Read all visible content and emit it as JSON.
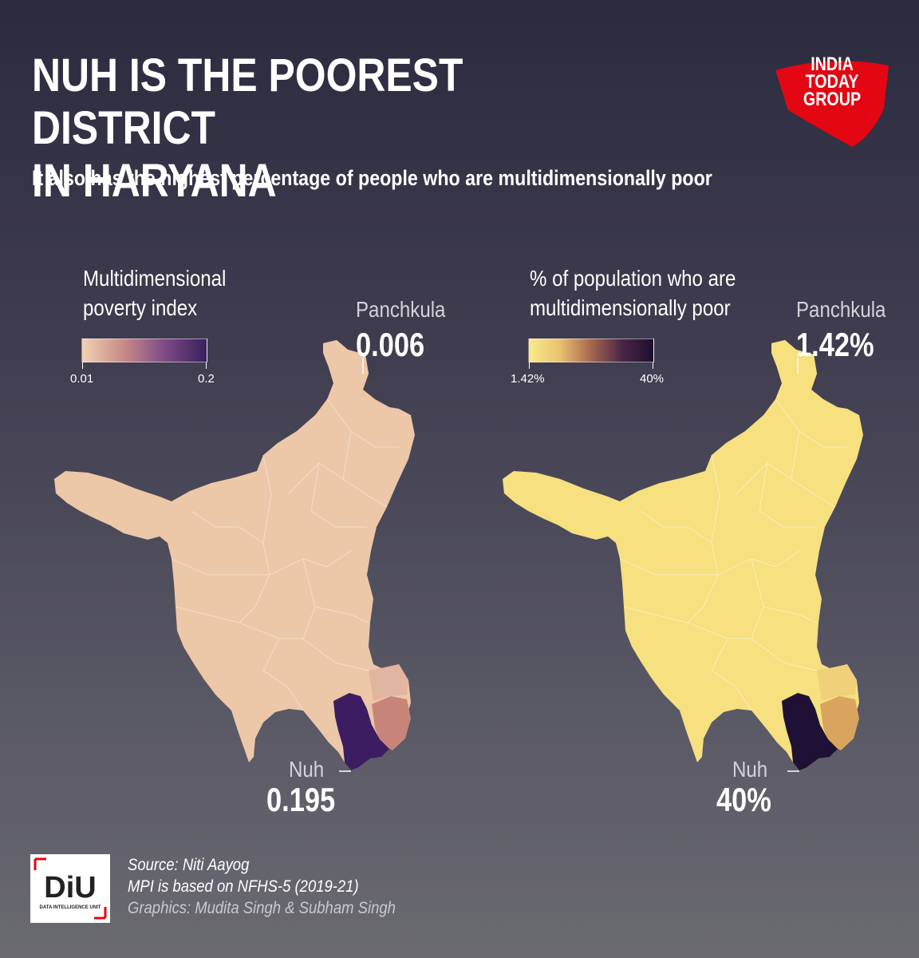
{
  "header": {
    "title_line1": "NUH IS THE POOREST DISTRICT",
    "title_line2": "IN HARYANA",
    "subtitle": "It also has the highest percentage of people who are multidimensionally poor"
  },
  "brand": {
    "line1": "INDIA",
    "line2": "TODAY",
    "line3": "GROUP",
    "color": "#e30613"
  },
  "maps": [
    {
      "legend_title_line1": "Multidimensional",
      "legend_title_line2": "poverty index",
      "legend_min": "0.01",
      "legend_max": "0.2",
      "gradient": [
        "#f0d2b2",
        "#c88a86",
        "#7d4a86",
        "#3a1f5e"
      ],
      "top_callout_name": "Panchkula",
      "top_callout_value": "0.006",
      "bottom_callout_name": "Nuh",
      "bottom_callout_value": "0.195",
      "base_fill": "#ecc7a8",
      "highlight_fill": "#3c1d62",
      "neighbor_fill": "#c7857a",
      "secondary_fill": "#e2b5a0"
    },
    {
      "legend_title_line1": "% of population who are",
      "legend_title_line2": "multidimensionally poor",
      "legend_min": "1.42%",
      "legend_max": "40%",
      "gradient": [
        "#fbeb8a",
        "#e9c170",
        "#a7664f",
        "#4a2548",
        "#1d0f2e"
      ],
      "top_callout_name": "Panchkula",
      "top_callout_value": "1.42%",
      "bottom_callout_name": "Nuh",
      "bottom_callout_value": "40%",
      "base_fill": "#f6e07f",
      "highlight_fill": "#1f1135",
      "neighbor_fill": "#d9a55e",
      "secondary_fill": "#f1d07a"
    }
  ],
  "footer": {
    "logo_text": "DiU",
    "logo_subtext": "DATA INTELLIGENCE UNIT",
    "source": "Source: Niti Aayog",
    "note": "MPI is based on NFHS-5 (2019-21)",
    "credits": "Graphics: Mudita Singh & Subham Singh"
  }
}
